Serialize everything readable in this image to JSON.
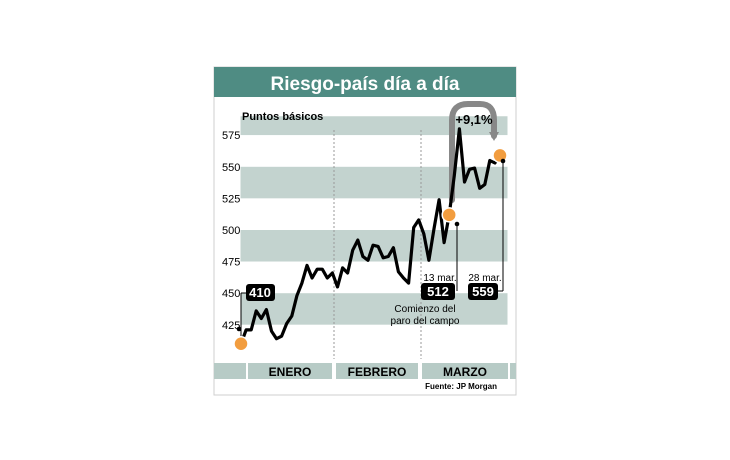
{
  "chart_data": {
    "type": "line",
    "title": "Riesgo-país día a día",
    "ylabel": "Puntos básicos",
    "ylim": [
      400,
      590
    ],
    "yticks": [
      425,
      450,
      475,
      500,
      525,
      550,
      575
    ],
    "months": [
      "ENERO",
      "FEBRERO",
      "MARZO"
    ],
    "source": "Fuente: JP Morgan",
    "series": [
      {
        "values": [
          410,
          421,
          421,
          436,
          430,
          437,
          420,
          414,
          416,
          426,
          432,
          448,
          458,
          472,
          462,
          469,
          469,
          462,
          466,
          455,
          470,
          466,
          484,
          492,
          479,
          476,
          488,
          487,
          478,
          479,
          486,
          467,
          462,
          458,
          502,
          508,
          497,
          476,
          501,
          524,
          490,
          512,
          543,
          580,
          538,
          548,
          549,
          533,
          536,
          555,
          553,
          559
        ]
      }
    ],
    "annotations": {
      "start_value": "410",
      "mark_13": {
        "date": "13 mar.",
        "value": "512",
        "note_line1": "Comienzo del",
        "note_line2": "paro del campo"
      },
      "mark_28": {
        "date": "28 mar.",
        "value": "559"
      },
      "change": "+9,1%"
    },
    "colors": {
      "header": "#4f8c83",
      "band_dark": "#c3d3cf",
      "band_light": "#ffffff",
      "line": "#000000",
      "marker": "#f29d3f",
      "arrow": "#888888",
      "axis_bar": "#b7cbc6"
    }
  }
}
